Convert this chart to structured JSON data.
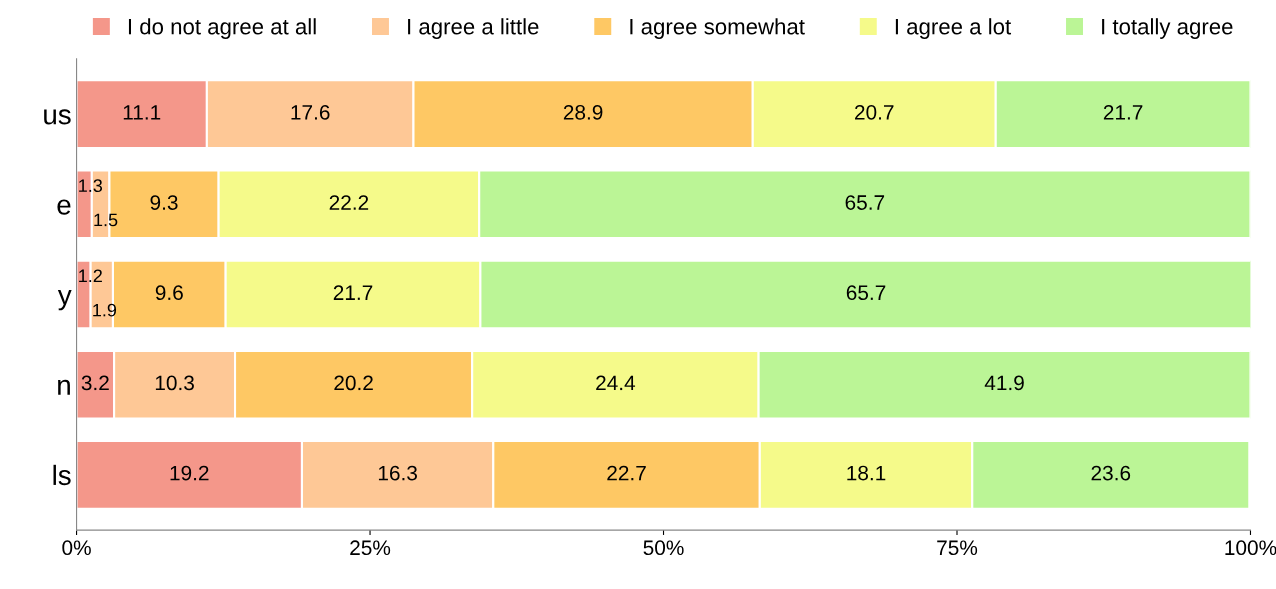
{
  "chart_data": {
    "type": "bar",
    "orientation": "horizontal",
    "stacked": true,
    "data_labels": true,
    "legend": "top",
    "grid": false,
    "categories": [
      "us",
      "e",
      "y",
      "n",
      "ls"
    ],
    "xlim": [
      0,
      100
    ],
    "xticks": [
      {
        "value": 0,
        "label": "0%"
      },
      {
        "value": 25,
        "label": "25%"
      },
      {
        "value": 50,
        "label": "50%"
      },
      {
        "value": 75,
        "label": "75%"
      },
      {
        "value": 100,
        "label": "100%"
      }
    ],
    "series": [
      {
        "name": "I do not agree at all",
        "color": "#f4978a",
        "values": [
          11.1,
          1.3,
          1.2,
          3.2,
          19.2
        ]
      },
      {
        "name": "I agree a little",
        "color": "#fec896",
        "values": [
          17.6,
          1.5,
          1.9,
          10.3,
          16.3
        ]
      },
      {
        "name": "I agree somewhat",
        "color": "#fec864",
        "values": [
          28.9,
          9.3,
          9.6,
          20.2,
          22.7
        ]
      },
      {
        "name": "I agree a lot",
        "color": "#f5fa8a",
        "values": [
          20.7,
          22.2,
          21.7,
          24.4,
          18.1
        ]
      },
      {
        "name": "I totally agree",
        "color": "#bbf596",
        "values": [
          21.7,
          65.7,
          65.7,
          41.9,
          23.6
        ]
      }
    ]
  }
}
